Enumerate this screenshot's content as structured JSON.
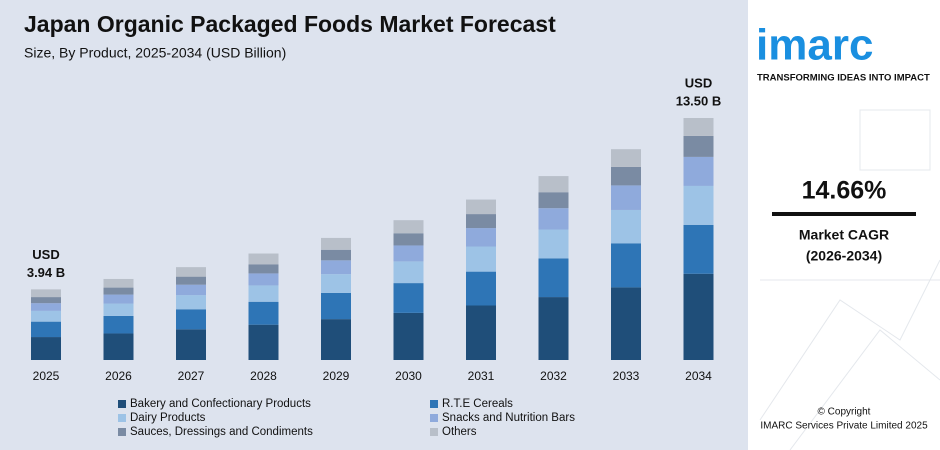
{
  "chart_data": {
    "type": "stacked_bar",
    "title": "Japan Organic Packaged Foods Market Forecast",
    "subtitle": "Size, By Product, 2025-2034 (USD Billion)",
    "categories": [
      "2025",
      "2026",
      "2027",
      "2028",
      "2029",
      "2030",
      "2031",
      "2032",
      "2033",
      "2034"
    ],
    "series": [
      {
        "name": "Bakery and Confectionary Products",
        "color": "#1f4e79",
        "values": [
          1.28,
          1.48,
          1.71,
          1.97,
          2.28,
          2.63,
          3.04,
          3.51,
          4.05,
          4.81
        ]
      },
      {
        "name": "R.T.E Cereals",
        "color": "#2e75b6",
        "values": [
          0.86,
          0.98,
          1.12,
          1.28,
          1.46,
          1.66,
          1.89,
          2.16,
          2.46,
          2.73
        ]
      },
      {
        "name": "Dairy Products",
        "color": "#9dc3e6",
        "values": [
          0.6,
          0.69,
          0.79,
          0.91,
          1.05,
          1.21,
          1.4,
          1.61,
          1.86,
          2.17
        ]
      },
      {
        "name": "Snacks and Nutrition Bars",
        "color": "#8faadc",
        "values": [
          0.43,
          0.5,
          0.58,
          0.67,
          0.77,
          0.89,
          1.03,
          1.19,
          1.37,
          1.62
        ]
      },
      {
        "name": "Sauces, Dressings and Condiments",
        "color": "#7a8ba3",
        "values": [
          0.34,
          0.39,
          0.45,
          0.51,
          0.59,
          0.68,
          0.78,
          0.89,
          1.03,
          1.17
        ]
      },
      {
        "name": "Others",
        "color": "#b8bfc9",
        "values": [
          0.43,
          0.48,
          0.53,
          0.6,
          0.66,
          0.73,
          0.81,
          0.9,
          0.99,
          1.0
        ]
      }
    ],
    "total_labels": [
      {
        "category": "2025",
        "value": 3.94,
        "label": [
          "USD",
          "3.94 B"
        ]
      },
      {
        "category": "2034",
        "value": 13.5,
        "label": [
          "USD",
          "13.50 B"
        ]
      }
    ],
    "cagr": {
      "value_label": "14.66%",
      "label": "Market CAGR",
      "period": "(2026-2034)"
    }
  },
  "sidebar": {
    "logo": "imarc",
    "tagline": "TRANSFORMING IDEAS INTO IMPACT",
    "copyright": "© Copyright",
    "company": "IMARC Services Private Limited 2025"
  }
}
